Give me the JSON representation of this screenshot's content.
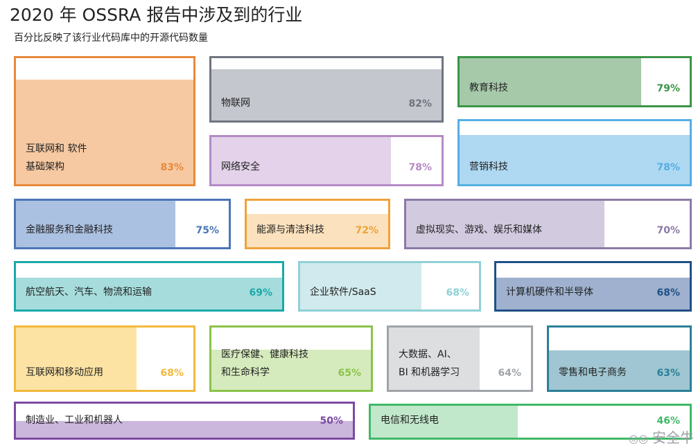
{
  "header": {
    "title": "2020 年 OSSRA 报告中涉及到的行业",
    "subtitle": "百分比反映了该行业代码库中的开源代码数量"
  },
  "watermark": "安全牛",
  "chart_data": {
    "type": "treemap",
    "title": "2020 年 OSSRA 报告中涉及到的行业",
    "subtitle": "百分比反映了该行业代码库中的开源代码数量",
    "unit": "%",
    "items": [
      {
        "id": "internet-software",
        "label_lines": [
          "互联网和 软件",
          "基础架构"
        ],
        "value": 83,
        "pct": "83%",
        "color": "#e8893b",
        "fill": "#f6c9a2",
        "orient": "v"
      },
      {
        "id": "iot",
        "label_lines": [
          "物联网"
        ],
        "value": 82,
        "pct": "82%",
        "color": "#6f7480",
        "fill": "#c4c7cd",
        "orient": "v"
      },
      {
        "id": "edtech",
        "label_lines": [
          "教育科技"
        ],
        "value": 79,
        "pct": "79%",
        "color": "#3b9447",
        "fill": "#a6c9a9",
        "orient": "h"
      },
      {
        "id": "cybersecurity",
        "label_lines": [
          "网络安全"
        ],
        "value": 78,
        "pct": "78%",
        "color": "#b48ac6",
        "fill": "#e3d2ea",
        "orient": "h"
      },
      {
        "id": "marketing",
        "label_lines": [
          "营销科技"
        ],
        "value": 78,
        "pct": "78%",
        "color": "#55aee3",
        "fill": "#afd8f2",
        "orient": "v"
      },
      {
        "id": "finance",
        "label_lines": [
          "金融服务和金融科技"
        ],
        "value": 75,
        "pct": "75%",
        "color": "#4a76b8",
        "fill": "#abc1e2",
        "orient": "h"
      },
      {
        "id": "energy",
        "label_lines": [
          "能源与清洁科技"
        ],
        "value": 72,
        "pct": "72%",
        "color": "#eea23a",
        "fill": "#fbe1bd",
        "orient": "v"
      },
      {
        "id": "vr-games",
        "label_lines": [
          "虚拟现实、游戏、娱乐和媒体"
        ],
        "value": 70,
        "pct": "70%",
        "color": "#8b7aa6",
        "fill": "#d2cadf",
        "orient": "h"
      },
      {
        "id": "transport",
        "label_lines": [
          "航空航天、汽车、物流和运输"
        ],
        "value": 69,
        "pct": "69%",
        "color": "#1aa9a9",
        "fill": "#a6dcdc",
        "orient": "v"
      },
      {
        "id": "saas",
        "label_lines": [
          "企业软件/SaaS"
        ],
        "value": 68,
        "pct": "68%",
        "color": "#8fd0d6",
        "fill": "#d1eaed",
        "orient": "h"
      },
      {
        "id": "hardware",
        "label_lines": [
          "计算机硬件和半导体"
        ],
        "value": 68,
        "pct": "68%",
        "color": "#1f4f86",
        "fill": "#9fb1ce",
        "orient": "v"
      },
      {
        "id": "mobile",
        "label_lines": [
          "互联网和移动应用"
        ],
        "value": 68,
        "pct": "68%",
        "color": "#f2b83c",
        "fill": "#fce3a3",
        "orient": "h"
      },
      {
        "id": "healthcare",
        "label_lines": [
          "医疗保健、健康科技",
          "和生命科学"
        ],
        "value": 65,
        "pct": "65%",
        "color": "#8bc34a",
        "fill": "#d6ebbd",
        "orient": "v"
      },
      {
        "id": "bigdata",
        "label_lines": [
          "大数据、AI、",
          "BI 和机器学习"
        ],
        "value": 64,
        "pct": "64%",
        "color": "#a0a4a8",
        "fill": "#dcdee0",
        "orient": "h"
      },
      {
        "id": "retail",
        "label_lines": [
          "零售和电子商务"
        ],
        "value": 63,
        "pct": "63%",
        "color": "#2b7f98",
        "fill": "#9fc6d2",
        "orient": "v"
      },
      {
        "id": "manufacturing",
        "label_lines": [
          "制造业、工业和机器人"
        ],
        "value": 50,
        "pct": "50%",
        "color": "#7b4aa0",
        "fill": "#ccb7dc",
        "orient": "v"
      },
      {
        "id": "telecom",
        "label_lines": [
          "电信和无线电"
        ],
        "value": 46,
        "pct": "46%",
        "color": "#3fb866",
        "fill": "#c1e8cb",
        "orient": "h"
      }
    ]
  }
}
